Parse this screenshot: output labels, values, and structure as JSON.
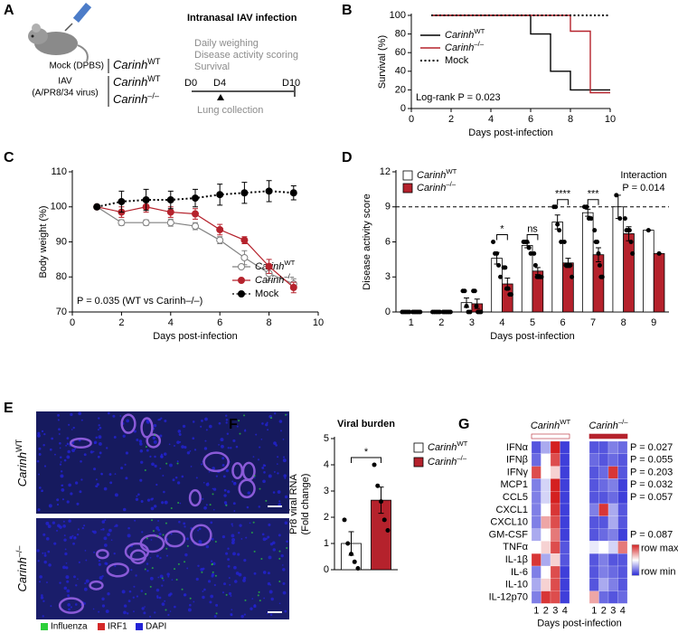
{
  "panel_a": {
    "label": "A",
    "title": "Intranasal IAV infection",
    "groups": [
      {
        "name": "Mock (DPBS)",
        "strains": [
          {
            "name": "CarinhWT",
            "color": "#8c8c8c"
          }
        ]
      },
      {
        "name": "IAV",
        "subname": "(A/PR8/34 virus)",
        "strains": [
          {
            "name": "CarinhWT",
            "color": "#000000"
          },
          {
            "name": "Carinh–/–",
            "color": "#b5222c"
          }
        ]
      }
    ],
    "readouts": [
      "Daily weighing",
      "Disease activity scoring",
      "Survival"
    ],
    "timeline": [
      "D0",
      "D4",
      "D10"
    ],
    "timeline_note": "Lung collection"
  },
  "panel_e": {
    "label": "E",
    "rows": [
      "CarinhWT",
      "Carinh–/–"
    ],
    "channels": [
      {
        "name": "Influenza",
        "color": "#2ccf3a"
      },
      {
        "name": "IRF1",
        "color": "#d42828"
      },
      {
        "name": "DAPI",
        "color": "#2323d6"
      }
    ]
  },
  "chart_data": [
    {
      "panel": "B",
      "type": "step-line",
      "x": [
        1,
        6,
        7,
        8,
        9,
        10
      ],
      "series": [
        {
          "name": "CarinhWT",
          "color": "#000000",
          "line_style": "solid",
          "values": [
            100,
            80,
            40,
            20,
            20,
            20
          ]
        },
        {
          "name": "Carinh–/–",
          "color": "#b5222c",
          "line_style": "solid",
          "values": [
            100,
            100,
            100,
            83,
            17,
            17
          ]
        },
        {
          "name": "Mock",
          "color": "#000000",
          "line_style": "dotted",
          "values": [
            100,
            100,
            100,
            100,
            100,
            100
          ]
        }
      ],
      "xlim": [
        0,
        10
      ],
      "xticks": [
        0,
        2,
        4,
        6,
        8,
        10
      ],
      "ylim": [
        0,
        100
      ],
      "yticks": [
        0,
        20,
        40,
        60,
        80,
        100
      ],
      "xlabel": "Days post-infection",
      "ylabel": "Survival (%)",
      "annotation": "Log-rank P = 0.023",
      "legend": "top-left"
    },
    {
      "panel": "C",
      "type": "line",
      "x": [
        1,
        2,
        3,
        4,
        5,
        6,
        7,
        8,
        9
      ],
      "series": [
        {
          "name": "CarinhWT",
          "color": "#808080",
          "marker": "open-circle",
          "line_style": "solid",
          "values": [
            100,
            95.5,
            95.5,
            95.5,
            94.5,
            90.5,
            85.5,
            81,
            78
          ],
          "errors": [
            0,
            0.8,
            0.8,
            1,
            1,
            1,
            2,
            2,
            1.5
          ]
        },
        {
          "name": "Carinh–/–",
          "color": "#b5222c",
          "marker": "filled-circle",
          "line_style": "solid",
          "values": [
            100,
            98.5,
            100,
            98.5,
            98,
            93.5,
            90.5,
            83,
            77
          ],
          "errors": [
            0,
            1.5,
            1.5,
            1.5,
            1.5,
            1.5,
            1,
            2,
            1.5
          ]
        },
        {
          "name": "Mock",
          "color": "#000000",
          "marker": "filled-circle",
          "line_style": "dotted",
          "values": [
            100,
            101.5,
            102,
            102,
            102.5,
            103.5,
            104,
            104.5,
            104
          ],
          "errors": [
            0,
            3,
            3,
            2.5,
            2.5,
            3,
            3,
            3,
            2
          ]
        }
      ],
      "xlim": [
        0,
        10
      ],
      "xticks": [
        0,
        2,
        4,
        6,
        8,
        10
      ],
      "ylim": [
        70,
        110
      ],
      "yticks": [
        70,
        80,
        90,
        100,
        110
      ],
      "xlabel": "Days post-infection",
      "ylabel": "Body weight (%)",
      "annotation": "P = 0.035 (WT vs Carinh–/–)",
      "legend": "bottom-right"
    },
    {
      "panel": "D",
      "type": "bar",
      "categories": [
        "1",
        "2",
        "3",
        "4",
        "5",
        "6",
        "7",
        "8",
        "9"
      ],
      "series": [
        {
          "name": "CarinhWT",
          "color": "#ffffff",
          "values": [
            0,
            0,
            0.8,
            4.6,
            5.7,
            7.7,
            8.5,
            9,
            7
          ],
          "errors": [
            0,
            0,
            0.4,
            0.5,
            0.2,
            0.6,
            0.3,
            1,
            0
          ],
          "points": [
            [
              0,
              0,
              0,
              0,
              0
            ],
            [
              0,
              0,
              0,
              0,
              0
            ],
            [
              1.8,
              1.8,
              0.5,
              0,
              0
            ],
            [
              6,
              5,
              5,
              4,
              3
            ],
            [
              6,
              6,
              6,
              5.5,
              5
            ],
            [
              9,
              9,
              7.5,
              7,
              6
            ],
            [
              9,
              9,
              8,
              8
            ],
            [
              10,
              8
            ],
            [
              7
            ]
          ]
        },
        {
          "name": "Carinh–/–",
          "color": "#b5222c",
          "values": [
            0,
            0,
            0.7,
            2.4,
            3.5,
            4.2,
            4.9,
            6.7,
            5
          ],
          "errors": [
            0,
            0,
            0.4,
            0.5,
            0.3,
            0.4,
            0.6,
            0.6,
            0
          ],
          "points": [
            [
              0,
              0,
              0,
              0,
              0,
              0
            ],
            [
              0,
              0,
              0,
              0,
              0,
              0
            ],
            [
              1.8,
              1.8,
              0.5,
              0,
              0,
              0
            ],
            [
              3.8,
              3.8,
              2,
              2,
              1.5,
              1.5
            ],
            [
              5,
              4,
              3,
              3,
              3,
              3
            ],
            [
              6,
              4,
              4,
              4,
              4,
              3
            ],
            [
              7,
              6,
              6,
              5,
              4,
              3,
              3
            ],
            [
              8,
              7,
              7,
              7,
              6,
              5
            ],
            [
              5
            ]
          ]
        }
      ],
      "ylim": [
        0,
        12
      ],
      "yticks": [
        0,
        3,
        6,
        9,
        12
      ],
      "reference_line": 9,
      "significance": [
        {
          "category": "4",
          "label": "*"
        },
        {
          "category": "5",
          "label": "ns"
        },
        {
          "category": "6",
          "label": "****"
        },
        {
          "category": "7",
          "label": "***"
        }
      ],
      "annotation": [
        "Interaction",
        "P = 0.014"
      ],
      "xlabel": "Days post-infection",
      "ylabel": "Disease activity score",
      "legend": "top-left"
    },
    {
      "panel": "F",
      "type": "bar",
      "title": "Viral burden",
      "categories": [
        null
      ],
      "series": [
        {
          "name": "CarinhWT",
          "color": "#ffffff",
          "values": [
            1.0
          ],
          "errors": [
            0.45
          ],
          "points": [
            [
              1.9,
              1.0,
              0.6,
              0.3,
              0.05
            ]
          ]
        },
        {
          "name": "Carinh–/–",
          "color": "#b5222c",
          "values": [
            2.65
          ],
          "errors": [
            0.5
          ],
          "points": [
            [
              4.0,
              3.2,
              2.6,
              1.9,
              1.5
            ]
          ]
        }
      ],
      "ylim": [
        0,
        5
      ],
      "yticks": [
        0,
        1,
        2,
        3,
        4,
        5
      ],
      "significance": [
        {
          "category": null,
          "label": "*"
        }
      ],
      "ylabel": [
        "Pr8 viral RNA",
        "(Fold change)"
      ],
      "legend": "right"
    },
    {
      "panel": "G",
      "type": "heatmap",
      "rows": [
        "IFNα",
        "IFNβ",
        "IFNγ",
        "MCP1",
        "CCL5",
        "CXCL1",
        "CXCL10",
        "GM-CSF",
        "TNFα",
        "IL-1β",
        "IL-6",
        "IL-10",
        "IL-12p70"
      ],
      "columns": [
        "1",
        "2",
        "3",
        "4"
      ],
      "series": [
        {
          "name": "CarinhWT",
          "color": "#ffffff",
          "values": [
            [
              0.1,
              0.3,
              1.0,
              0.05
            ],
            [
              0.15,
              0.5,
              0.9,
              0.05
            ],
            [
              0.9,
              0.5,
              0.6,
              0.05
            ],
            [
              0.2,
              0.4,
              1.0,
              0.05
            ],
            [
              0.2,
              0.4,
              1.0,
              0.05
            ],
            [
              0.2,
              0.5,
              0.95,
              0.05
            ],
            [
              0.2,
              0.7,
              0.9,
              0.05
            ],
            [
              0.3,
              0.5,
              0.8,
              0.05
            ],
            [
              0.5,
              0.6,
              0.9,
              0.1
            ],
            [
              0.95,
              0.3,
              0.6,
              0.1
            ],
            [
              0.2,
              0.5,
              0.9,
              0.05
            ],
            [
              0.3,
              0.6,
              0.9,
              0.05
            ],
            [
              0.2,
              0.95,
              0.9,
              0.05
            ]
          ]
        },
        {
          "name": "Carinh–/–",
          "color": "#b5222c",
          "values": [
            [
              0.1,
              0.1,
              0.2,
              0.15
            ],
            [
              0.15,
              0.1,
              0.15,
              0.1
            ],
            [
              0.1,
              0.15,
              0.95,
              0.1
            ],
            [
              0.1,
              0.15,
              0.2,
              0.05
            ],
            [
              0.1,
              0.1,
              0.15,
              0.05
            ],
            [
              0.2,
              0.95,
              0.3,
              0.1
            ],
            [
              0.1,
              0.1,
              0.3,
              0.1
            ],
            [
              0.1,
              0.15,
              0.2,
              0.05
            ],
            [
              0.45,
              0.5,
              0.4,
              0.8
            ],
            [
              0.1,
              0.2,
              0.1,
              0.1
            ],
            [
              0.1,
              0.2,
              0.15,
              0.1
            ],
            [
              0.1,
              0.3,
              0.2,
              0.1
            ],
            [
              0.7,
              0.15,
              0.1,
              0.15
            ]
          ]
        }
      ],
      "row_annotations": [
        "P = 0.027",
        "P = 0.055",
        "P = 0.203",
        "P = 0.032",
        "P = 0.057",
        null,
        null,
        "P = 0.087",
        null,
        null,
        null,
        null,
        null
      ],
      "colorbar": {
        "range": [
          0,
          1
        ],
        "max_label": "row max",
        "min_label": "row min"
      },
      "colors": [
        "#2a2ad6",
        "#ffffff",
        "#d42020"
      ],
      "xlabel": "Days post-infection"
    }
  ]
}
